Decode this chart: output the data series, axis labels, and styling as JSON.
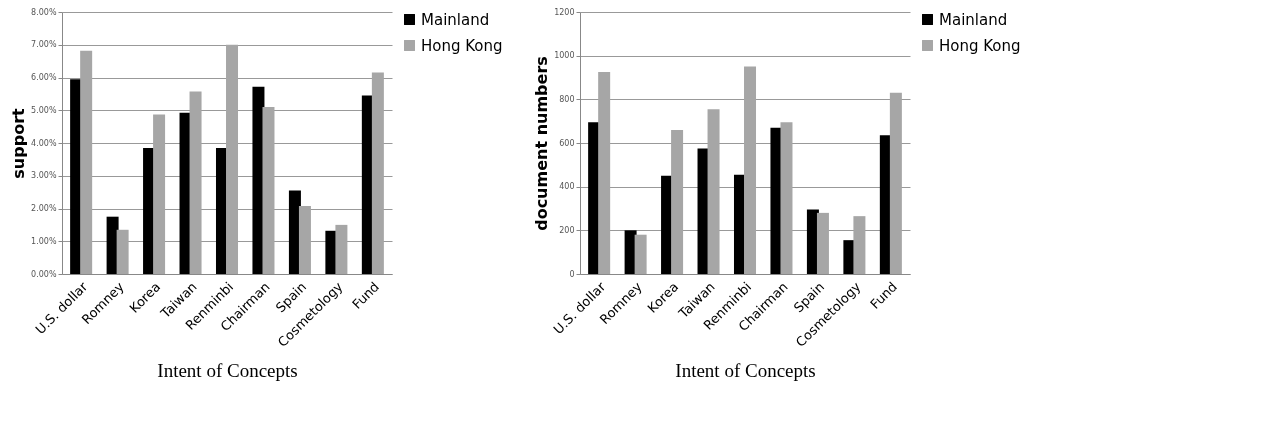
{
  "chart_data": [
    {
      "type": "bar",
      "xlabel": "Intent of Concepts",
      "ylabel": "support",
      "categories": [
        "U.S. dollar",
        "Romney",
        "Korea",
        "Taiwan",
        "Renminbi",
        "Chairman",
        "Spain",
        "Cosmetology",
        "Fund"
      ],
      "series": [
        {
          "name": "Mainland",
          "color": "#000000",
          "values": [
            5.95,
            1.75,
            3.85,
            4.92,
            3.85,
            5.72,
            2.55,
            1.32,
            5.45
          ]
        },
        {
          "name": "Hong Kong",
          "color": "#a6a6a6",
          "values": [
            6.82,
            1.35,
            4.87,
            5.57,
            7.0,
            5.1,
            2.08,
            1.5,
            6.15
          ]
        }
      ],
      "ylim": [
        0,
        8
      ],
      "yticks": [
        {
          "value": 0,
          "label": "0.00%"
        },
        {
          "value": 1,
          "label": "1.00%"
        },
        {
          "value": 2,
          "label": "2.00%"
        },
        {
          "value": 3,
          "label": "3.00%"
        },
        {
          "value": 4,
          "label": "4.00%"
        },
        {
          "value": 5,
          "label": "5.00%"
        },
        {
          "value": 6,
          "label": "6.00%"
        },
        {
          "value": 7,
          "label": "7.00%"
        },
        {
          "value": 8,
          "label": "8.00%"
        }
      ],
      "grid": "y",
      "legend": "right"
    },
    {
      "type": "bar",
      "xlabel": "Intent of Concepts",
      "ylabel": "document numbers",
      "categories": [
        "U.S. dollar",
        "Romney",
        "Korea",
        "Taiwan",
        "Renminbi",
        "Chairman",
        "Spain",
        "Cosmetology",
        "Fund"
      ],
      "series": [
        {
          "name": "Mainland",
          "color": "#000000",
          "values": [
            695,
            200,
            450,
            575,
            455,
            670,
            295,
            155,
            635
          ]
        },
        {
          "name": "Hong Kong",
          "color": "#a6a6a6",
          "values": [
            925,
            180,
            660,
            755,
            950,
            695,
            280,
            265,
            830
          ]
        }
      ],
      "ylim": [
        0,
        1200
      ],
      "yticks": [
        0,
        200,
        400,
        600,
        800,
        1000,
        1200
      ],
      "grid": "y",
      "legend": "right"
    }
  ]
}
